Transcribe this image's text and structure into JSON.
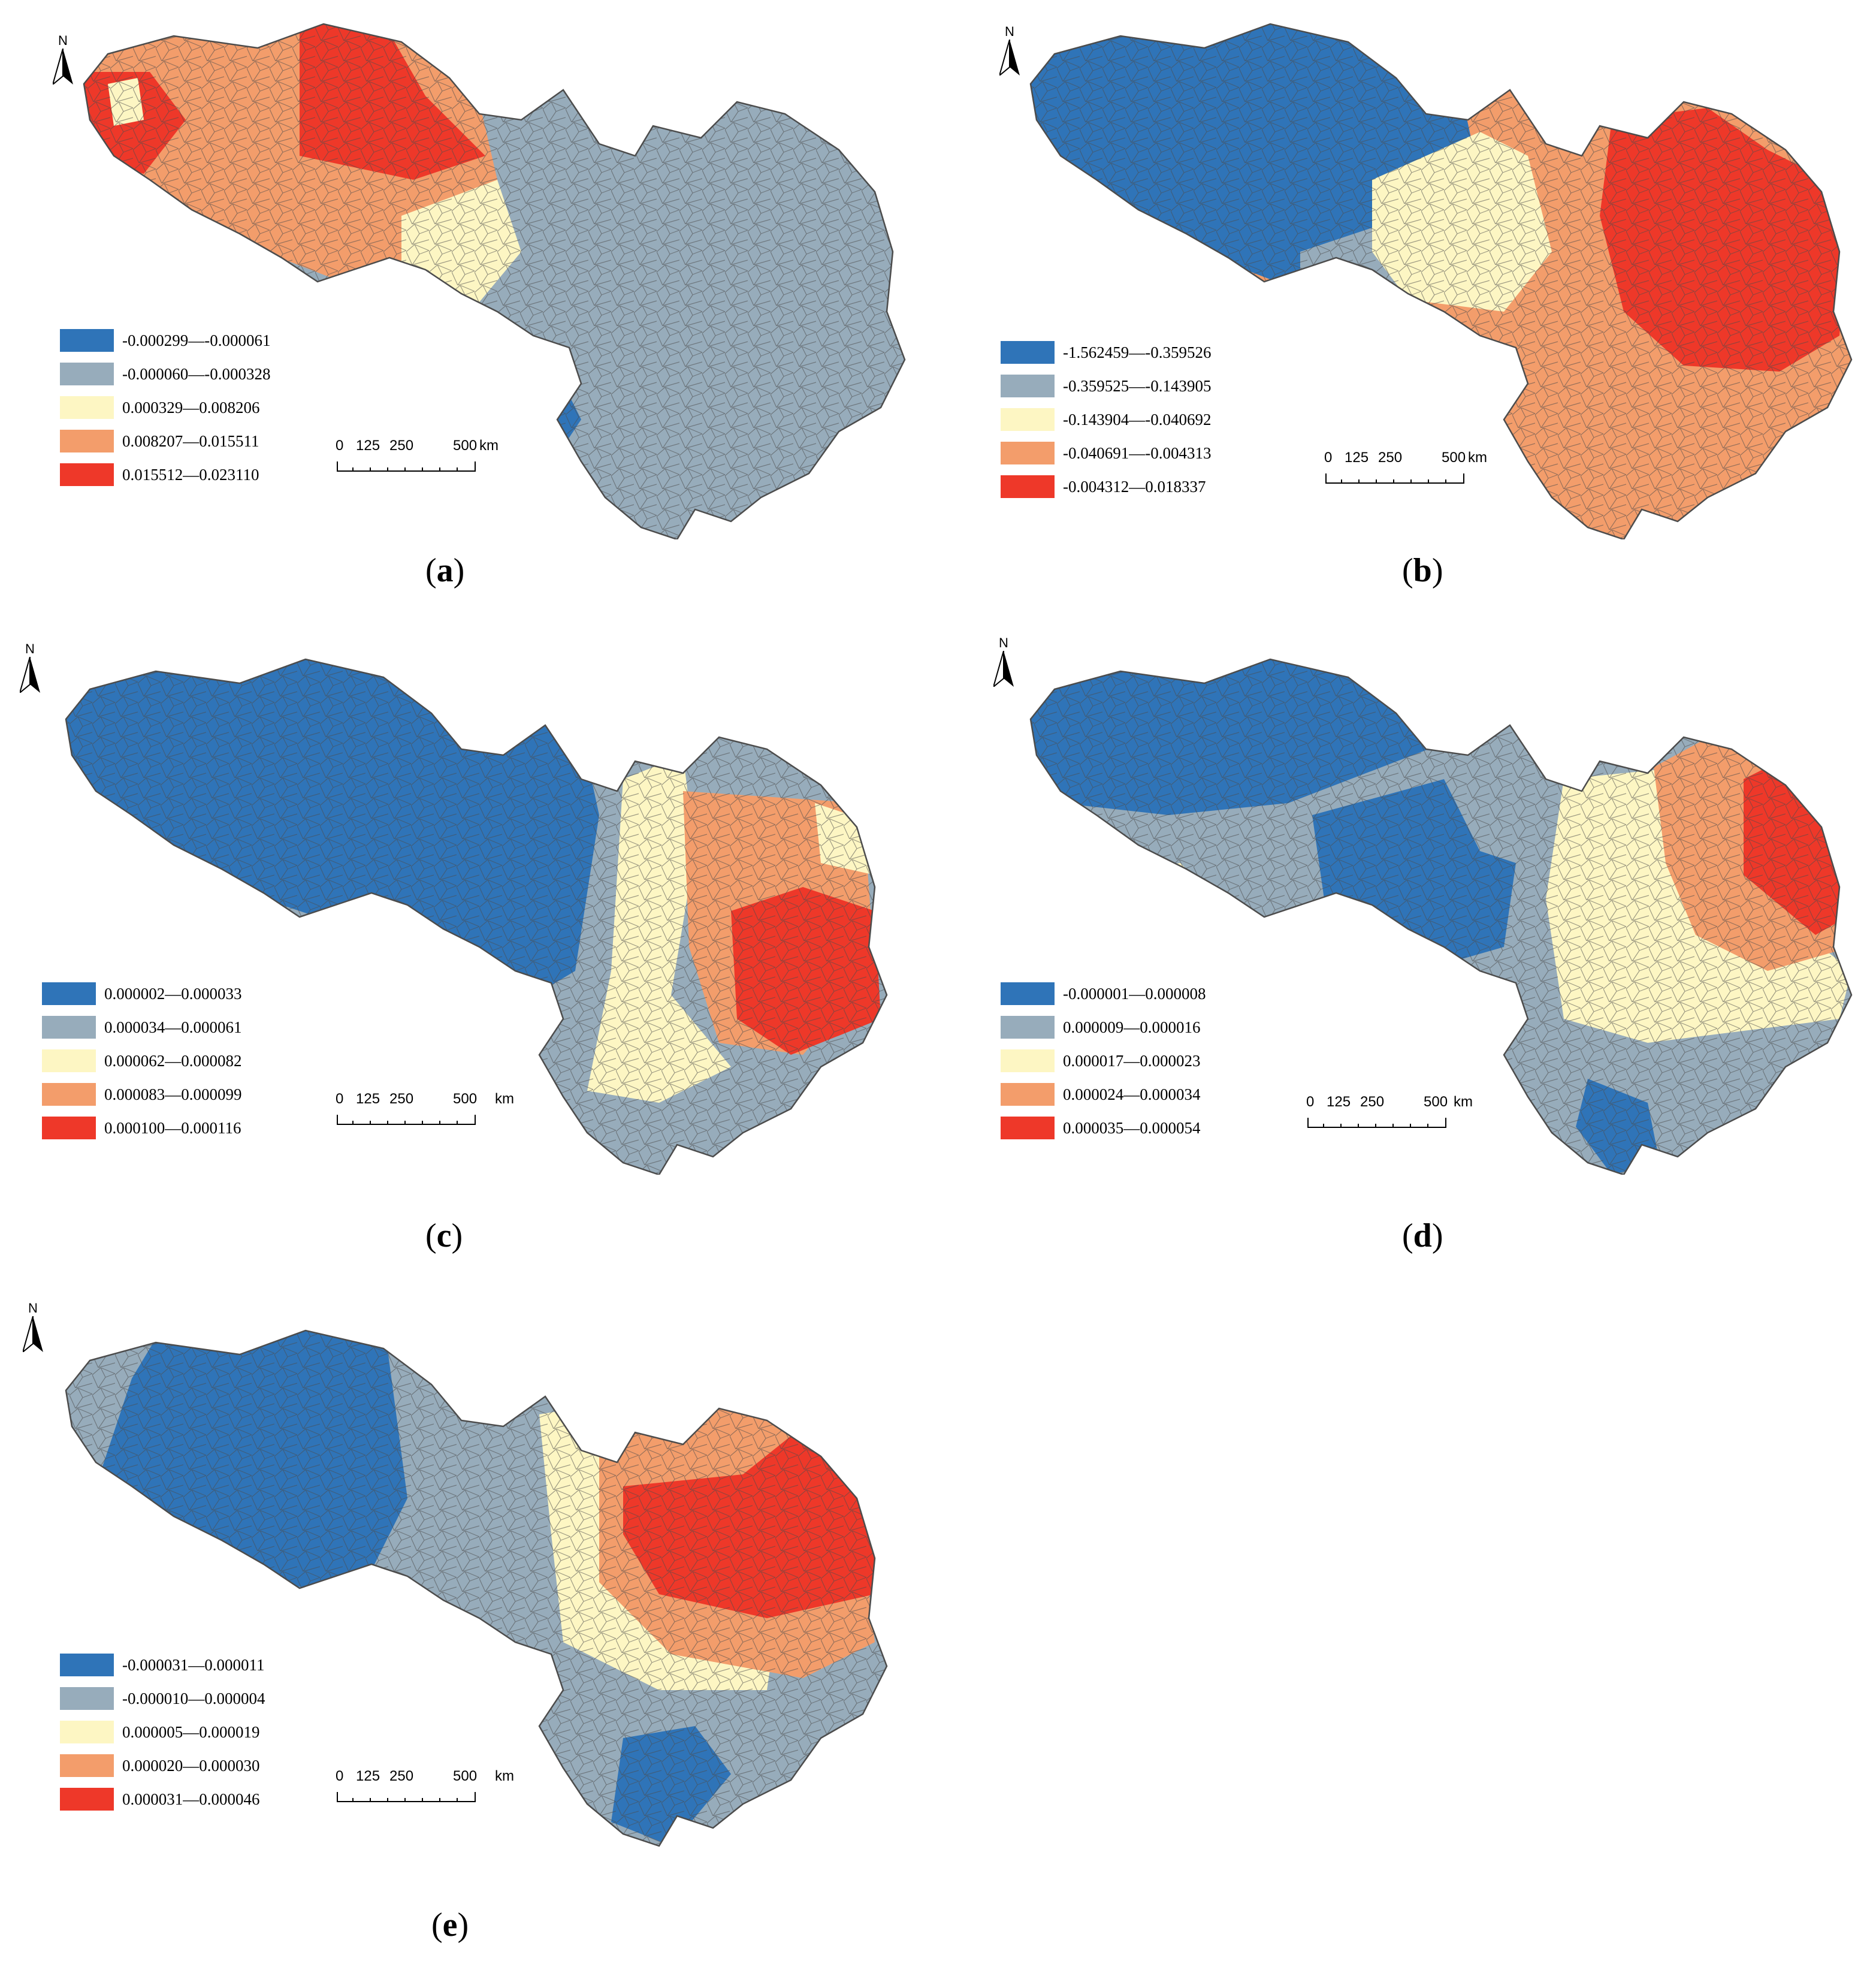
{
  "colors": {
    "class1": "#2f74b8",
    "class2": "#97acbb",
    "class3": "#fdf6c3",
    "class4": "#f39d6b",
    "class5": "#ee3829",
    "boundary": "#4c4c4c"
  },
  "compass": {
    "letter": "N"
  },
  "scale": {
    "t0": "0",
    "t1": "125",
    "t2": "250",
    "t3": "500",
    "unit": "km"
  },
  "panels": [
    {
      "caption_letter": "a",
      "legend": [
        "-0.000299—-0.000061",
        "-0.000060—-0.000328",
        "0.000329—0.008206",
        "0.008207—0.015511",
        "0.015512—0.023110"
      ]
    },
    {
      "caption_letter": "b",
      "legend": [
        "-1.562459—-0.359526",
        "-0.359525—-0.143905",
        "-0.143904—-0.040692",
        "-0.040691—-0.004313",
        "-0.004312—0.018337"
      ]
    },
    {
      "caption_letter": "c",
      "legend": [
        "0.000002—0.000033",
        "0.000034—0.000061",
        "0.000062—0.000082",
        "0.000083—0.000099",
        "0.000100—0.000116"
      ]
    },
    {
      "caption_letter": "d",
      "legend": [
        "-0.000001—0.000008",
        "0.000009—0.000016",
        "0.000017—0.000023",
        "0.000024—0.000034",
        "0.000035—0.000054"
      ]
    },
    {
      "caption_letter": "e",
      "legend": [
        "-0.000031—0.000011",
        "-0.000010—0.000004",
        "0.000005—0.000019",
        "0.000020—0.000030",
        "0.000031—0.000046"
      ]
    }
  ]
}
